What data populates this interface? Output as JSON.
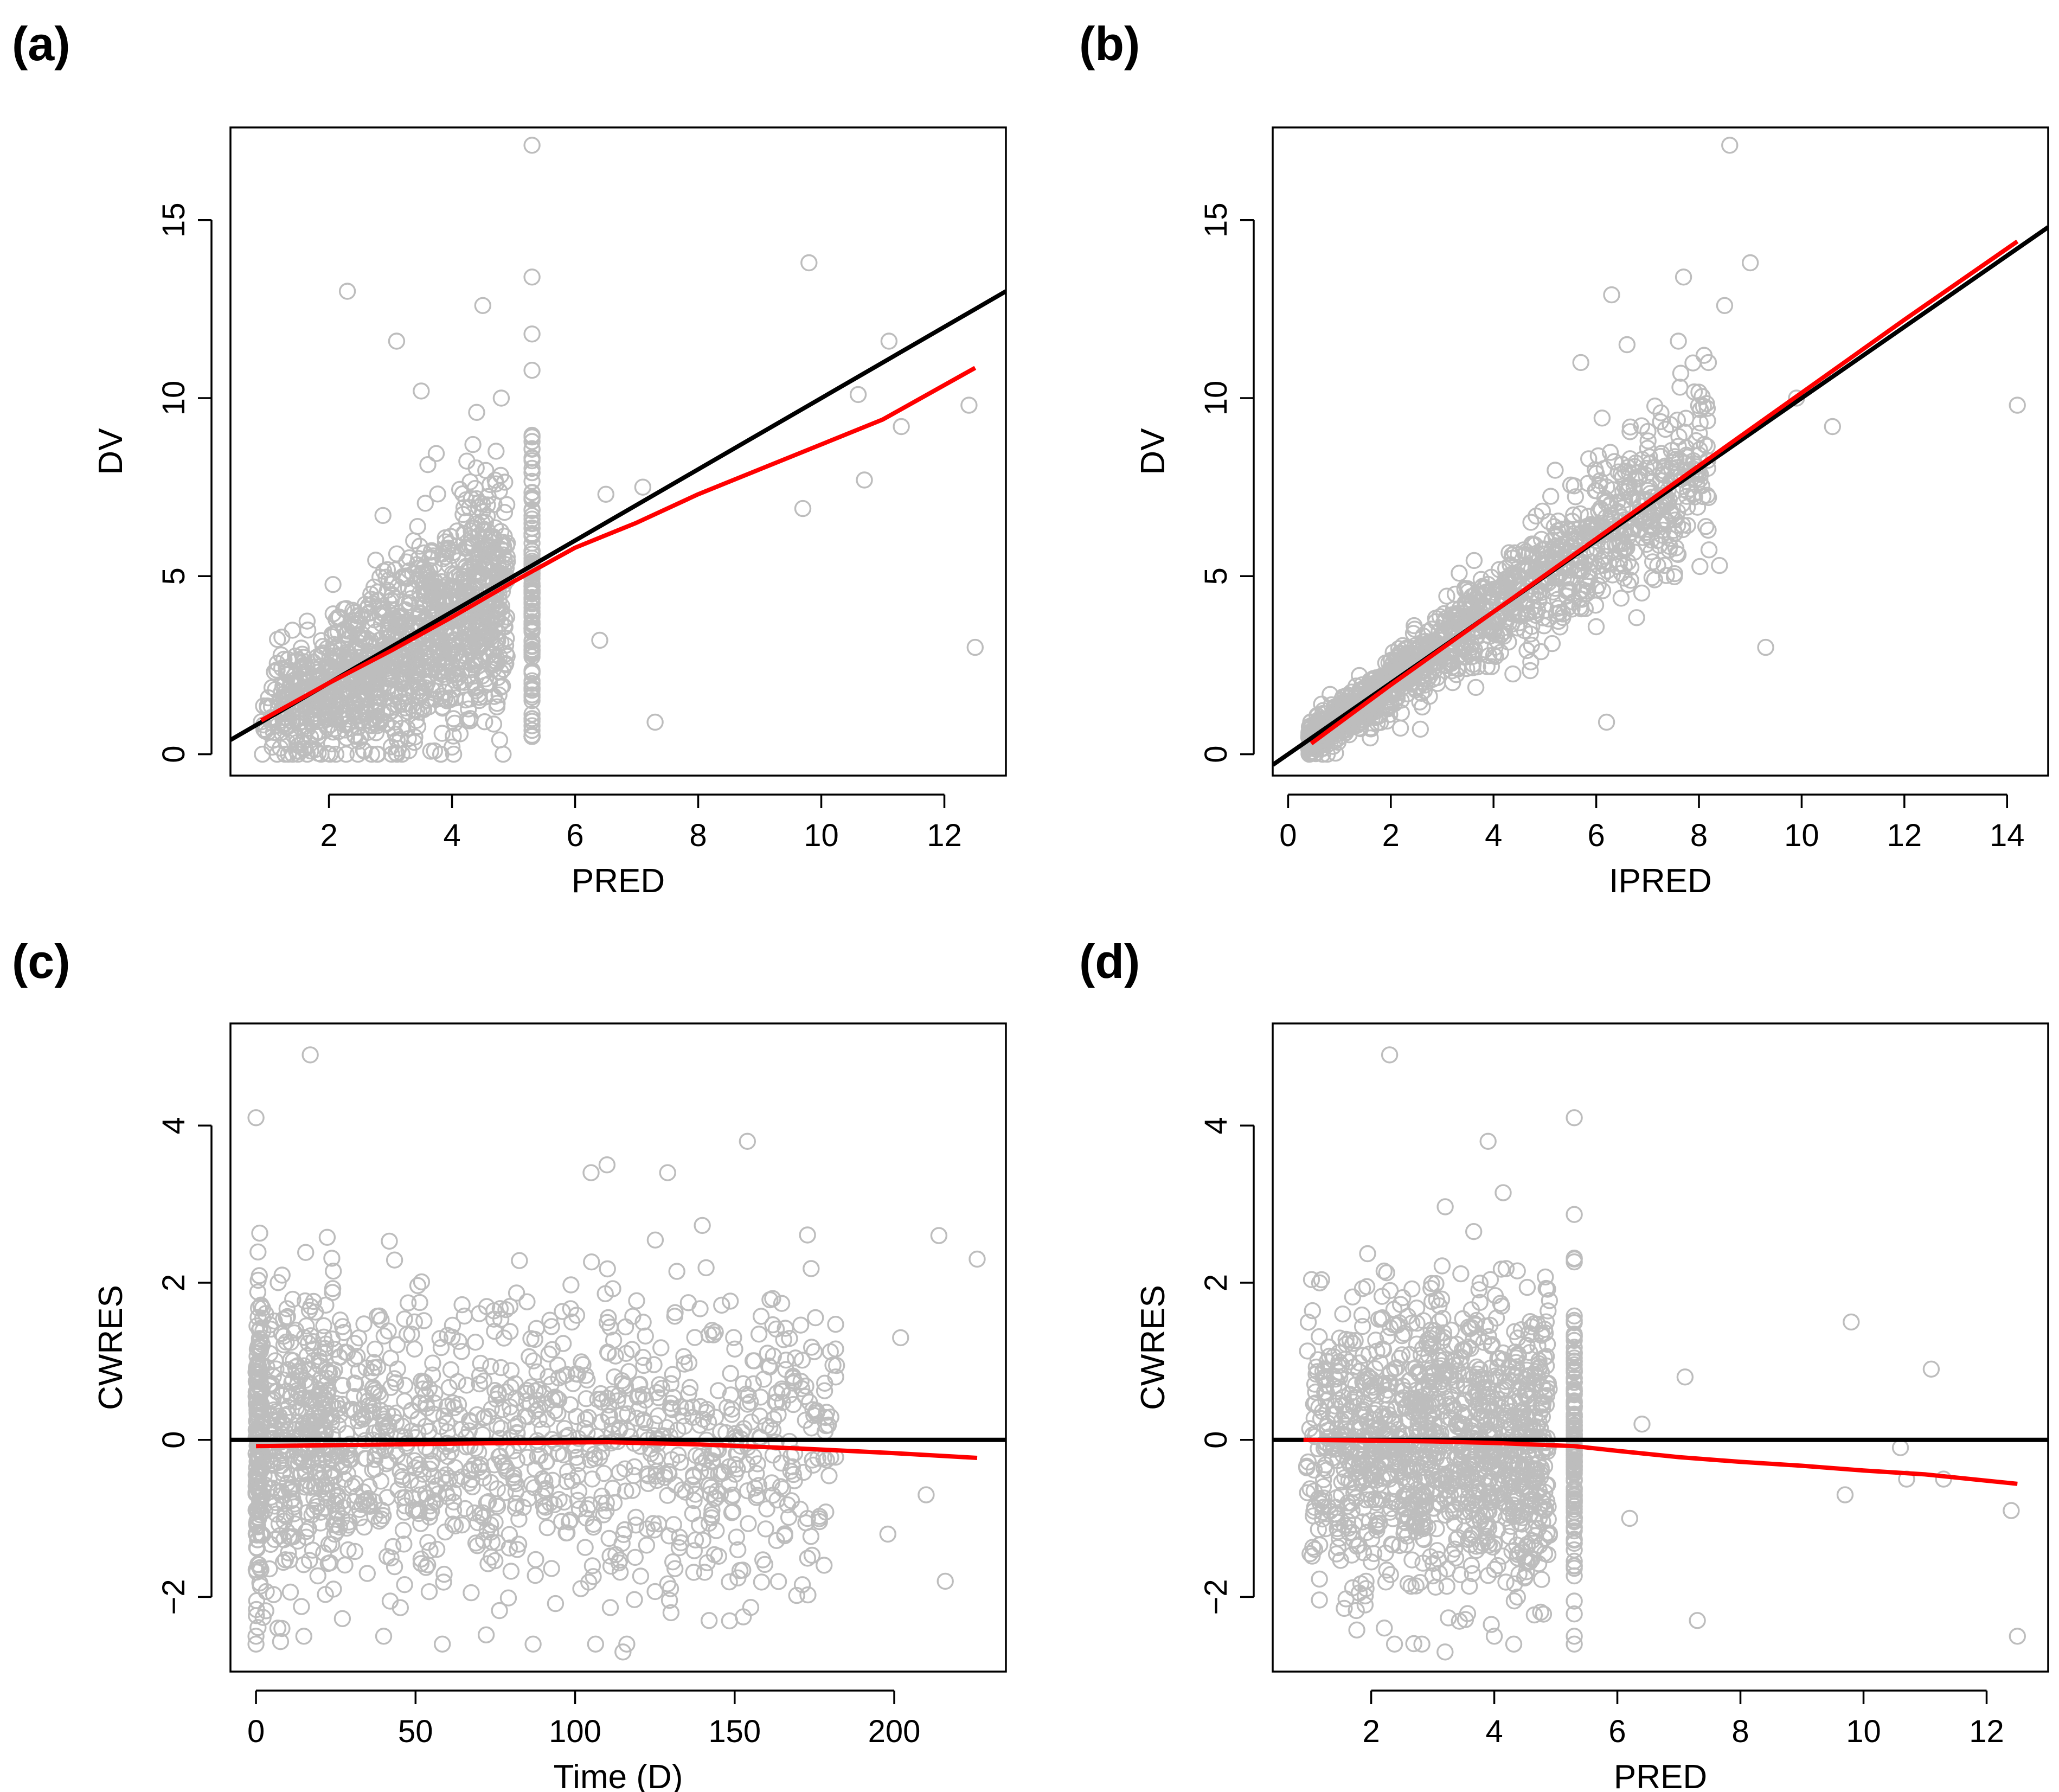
{
  "panel_labels": {
    "a": "(a)",
    "b": "(b)",
    "c": "(c)",
    "d": "(d)"
  },
  "colors": {
    "points": "#bdbdbd",
    "trend": "#ff0000",
    "reference": "#000000",
    "axis": "#000000"
  },
  "chart_data": [
    {
      "id": "a",
      "type": "scatter",
      "title": "",
      "xlabel": "PRED",
      "ylabel": "DV",
      "xlim": [
        0.4,
        13.0
      ],
      "ylim": [
        -0.6,
        17.6
      ],
      "xticks": [
        2,
        4,
        6,
        8,
        10,
        12
      ],
      "yticks": [
        0,
        5,
        10,
        15
      ],
      "reference_line": {
        "type": "identity",
        "slope": 1,
        "intercept": 0
      },
      "trend_line": [
        [
          0.9,
          0.95
        ],
        [
          2,
          2.0
        ],
        [
          3,
          2.9
        ],
        [
          4,
          3.85
        ],
        [
          5,
          4.85
        ],
        [
          6,
          5.8
        ],
        [
          7,
          6.5
        ],
        [
          8,
          7.3
        ],
        [
          9,
          8.0
        ],
        [
          10,
          8.7
        ],
        [
          11,
          9.4
        ],
        [
          12.5,
          10.85
        ]
      ],
      "generated_points": {
        "model": "dv_vs_pred",
        "n": 1400,
        "seed": 11
      },
      "points": [
        [
          5.3,
          17.1
        ],
        [
          2.3,
          13.0
        ],
        [
          9.8,
          13.8
        ],
        [
          5.3,
          13.4
        ],
        [
          4.5,
          12.6
        ],
        [
          11.1,
          11.6
        ],
        [
          5.3,
          11.8
        ],
        [
          12.4,
          9.8
        ],
        [
          10.6,
          10.1
        ],
        [
          11.3,
          9.2
        ],
        [
          9.7,
          6.9
        ],
        [
          10.7,
          7.7
        ],
        [
          12.5,
          3.0
        ],
        [
          6.4,
          3.2
        ],
        [
          7.3,
          0.9
        ],
        [
          7.1,
          7.5
        ],
        [
          6.5,
          7.3
        ],
        [
          5.3,
          1.0
        ],
        [
          5.3,
          0.8
        ],
        [
          4.0,
          0.2
        ],
        [
          3.3,
          0.1
        ],
        [
          3.1,
          11.6
        ],
        [
          3.5,
          10.2
        ],
        [
          4.4,
          9.6
        ],
        [
          4.8,
          10.0
        ]
      ]
    },
    {
      "id": "b",
      "type": "scatter",
      "title": "",
      "xlabel": "IPRED",
      "ylabel": "DV",
      "xlim": [
        -0.3,
        14.8
      ],
      "ylim": [
        -0.6,
        17.6
      ],
      "xticks": [
        0,
        2,
        4,
        6,
        8,
        10,
        12,
        14
      ],
      "yticks": [
        0,
        5,
        10,
        15
      ],
      "reference_line": {
        "type": "identity",
        "slope": 1,
        "intercept": 0
      },
      "trend_line": [
        [
          0.45,
          0.3
        ],
        [
          2,
          1.95
        ],
        [
          4,
          4.0
        ],
        [
          6,
          6.05
        ],
        [
          8,
          8.1
        ],
        [
          10,
          10.15
        ],
        [
          12,
          12.2
        ],
        [
          14.2,
          14.4
        ]
      ],
      "generated_points": {
        "model": "dv_vs_ipred",
        "n": 1400,
        "seed": 23
      },
      "points": [
        [
          8.6,
          17.1
        ],
        [
          9.0,
          13.8
        ],
        [
          8.5,
          12.6
        ],
        [
          6.3,
          12.9
        ],
        [
          7.7,
          13.4
        ],
        [
          14.2,
          9.8
        ],
        [
          10.6,
          9.2
        ],
        [
          9.9,
          10.0
        ],
        [
          9.3,
          3.0
        ],
        [
          6.2,
          0.9
        ],
        [
          8.4,
          5.3
        ],
        [
          7.6,
          11.6
        ],
        [
          8.1,
          11.2
        ],
        [
          5.7,
          11.0
        ],
        [
          6.6,
          11.5
        ]
      ]
    },
    {
      "id": "c",
      "type": "scatter",
      "title": "",
      "xlabel": "Time (D)",
      "ylabel": "CWRES",
      "xlim": [
        -8,
        235
      ],
      "ylim": [
        -2.95,
        5.3
      ],
      "xticks": [
        0,
        50,
        100,
        150,
        200
      ],
      "yticks": [
        -2,
        0,
        2,
        4
      ],
      "reference_line": {
        "type": "horizontal",
        "y": 0
      },
      "trend_line": [
        [
          0,
          -0.08
        ],
        [
          40,
          -0.06
        ],
        [
          80,
          -0.04
        ],
        [
          110,
          -0.03
        ],
        [
          140,
          -0.06
        ],
        [
          170,
          -0.11
        ],
        [
          200,
          -0.17
        ],
        [
          226,
          -0.23
        ]
      ],
      "generated_points": {
        "model": "cwres_vs_time",
        "n": 1500,
        "seed": 37
      },
      "points": [
        [
          17,
          4.9
        ],
        [
          0,
          4.1
        ],
        [
          154,
          3.8
        ],
        [
          110,
          3.5
        ],
        [
          105,
          3.4
        ],
        [
          129,
          3.4
        ],
        [
          214,
          2.6
        ],
        [
          226,
          2.3
        ],
        [
          202,
          1.3
        ],
        [
          210,
          -0.7
        ],
        [
          198,
          -1.2
        ],
        [
          216,
          -1.8
        ],
        [
          115,
          -2.7
        ],
        [
          142,
          -2.3
        ],
        [
          0,
          -2.6
        ],
        [
          0,
          -2.5
        ],
        [
          15,
          -2.5
        ],
        [
          40,
          -2.5
        ]
      ]
    },
    {
      "id": "d",
      "type": "scatter",
      "title": "",
      "xlabel": "PRED",
      "ylabel": "CWRES",
      "xlim": [
        0.4,
        13.0
      ],
      "ylim": [
        -2.95,
        5.3
      ],
      "xticks": [
        2,
        4,
        6,
        8,
        10,
        12
      ],
      "yticks": [
        -2,
        0,
        2,
        4
      ],
      "reference_line": {
        "type": "horizontal",
        "y": 0
      },
      "trend_line": [
        [
          0.9,
          0.0
        ],
        [
          2,
          -0.01
        ],
        [
          3,
          -0.02
        ],
        [
          4,
          -0.04
        ],
        [
          5.3,
          -0.08
        ],
        [
          6,
          -0.14
        ],
        [
          7,
          -0.22
        ],
        [
          8,
          -0.28
        ],
        [
          9,
          -0.33
        ],
        [
          10,
          -0.39
        ],
        [
          11,
          -0.44
        ],
        [
          12.5,
          -0.56
        ]
      ],
      "generated_points": {
        "model": "cwres_vs_pred",
        "n": 1400,
        "seed": 53
      },
      "points": [
        [
          2.3,
          4.9
        ],
        [
          5.3,
          4.1
        ],
        [
          3.9,
          3.8
        ],
        [
          9.8,
          1.5
        ],
        [
          11.1,
          0.9
        ],
        [
          7.1,
          0.8
        ],
        [
          6.4,
          0.2
        ],
        [
          10.6,
          -0.1
        ],
        [
          10.7,
          -0.5
        ],
        [
          11.3,
          -0.5
        ],
        [
          9.7,
          -0.7
        ],
        [
          12.4,
          -0.9
        ],
        [
          6.2,
          -1.0
        ],
        [
          7.3,
          -2.3
        ],
        [
          12.5,
          -2.5
        ],
        [
          4.0,
          -2.5
        ],
        [
          3.2,
          -2.7
        ],
        [
          5.3,
          -2.6
        ],
        [
          5.3,
          -2.5
        ]
      ]
    }
  ]
}
